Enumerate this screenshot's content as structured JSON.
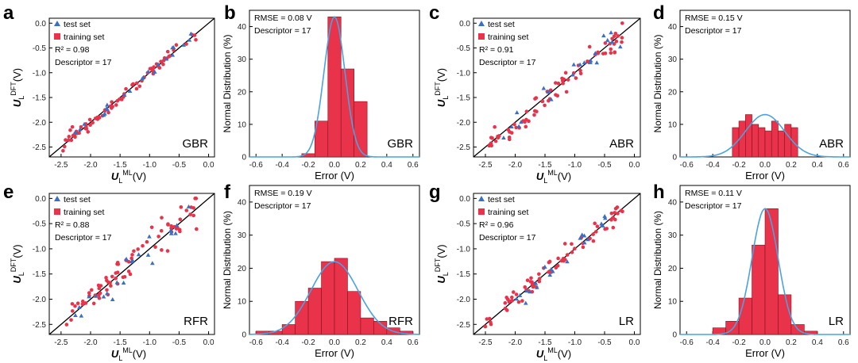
{
  "figure": {
    "colors": {
      "train": "#e8334a",
      "test": "#3a6fc4",
      "gauss": "#4aa3df",
      "bar": "#e8334a",
      "axis": "#000000"
    }
  },
  "chart_data": [
    {
      "id": "a",
      "type": "scatter",
      "panel_letter": "a",
      "model_label": "GBR",
      "r2_text": "R² = 0.98",
      "descriptor_text": "Descriptor = 17",
      "legend": [
        "test set",
        "training set"
      ],
      "xlabel": "U_L^ML(V)",
      "ylabel": "U_L^DFT(V)",
      "xlim": [
        -2.7,
        0.1
      ],
      "ylim": [
        -2.7,
        0.1
      ],
      "ticks": [
        -2.5,
        -2.0,
        -1.5,
        -1.0,
        -0.5,
        0.0
      ],
      "tick_labels": [
        "-2.5",
        "-2.0",
        "-1.5",
        "-1.0",
        "-0.5",
        "0.0"
      ],
      "spread": 0.06,
      "seed": 11
    },
    {
      "id": "b",
      "type": "bar",
      "panel_letter": "b",
      "model_label": "GBR",
      "rmse_text": "RMSE = 0.08 V",
      "descriptor_text": "Descriptor = 17",
      "xlabel": "Error (V)",
      "ylabel": "Normal Distribution (%)",
      "xlim": [
        -0.65,
        0.65
      ],
      "ylim": [
        0,
        45
      ],
      "xticks": [
        -0.6,
        -0.4,
        -0.2,
        0.0,
        0.2,
        0.4,
        0.6
      ],
      "xtick_labels": [
        "-0.6",
        "-0.4",
        "-0.2",
        "0.0",
        "0.2",
        "0.4",
        "0.6"
      ],
      "yticks": [
        0,
        10,
        20,
        30,
        40
      ],
      "ytick_labels": [
        "0",
        "10",
        "20",
        "30",
        "40"
      ],
      "bin_start": -0.25,
      "bin_width": 0.1,
      "values": [
        1,
        11,
        43,
        27,
        17
      ],
      "gauss": {
        "mu": 0.0,
        "sigma": 0.08,
        "peak": 43
      }
    },
    {
      "id": "c",
      "type": "scatter",
      "panel_letter": "c",
      "model_label": "ABR",
      "r2_text": "R² = 0.91",
      "descriptor_text": "Descriptor = 17",
      "legend": [
        "test set",
        "training set"
      ],
      "xlabel": "U_L^ML(V)",
      "ylabel": "U_L^DFT(V)",
      "xlim": [
        -2.7,
        0.1
      ],
      "ylim": [
        -2.7,
        0.1
      ],
      "ticks": [
        -2.5,
        -2.0,
        -1.5,
        -1.0,
        -0.5,
        0.0
      ],
      "tick_labels": [
        "-2.5",
        "-2.0",
        "-1.5",
        "-1.0",
        "-0.5",
        "0.0"
      ],
      "spread": 0.12,
      "seed": 23
    },
    {
      "id": "d",
      "type": "bar",
      "panel_letter": "d",
      "model_label": "ABR",
      "rmse_text": "RMSE = 0.15 V",
      "descriptor_text": "Descriptor = 17",
      "xlabel": "Error (V)",
      "ylabel": "Normal Distribution (%)",
      "xlim": [
        -0.65,
        0.65
      ],
      "ylim": [
        0,
        45
      ],
      "xticks": [
        -0.6,
        -0.4,
        -0.2,
        0.0,
        0.2,
        0.4,
        0.6
      ],
      "xtick_labels": [
        "-0.6",
        "-0.4",
        "-0.2",
        "0.0",
        "0.2",
        "0.4",
        "0.6"
      ],
      "yticks": [
        0,
        10,
        20,
        30,
        40
      ],
      "ytick_labels": [
        "0",
        "10",
        "20",
        "30",
        "40"
      ],
      "bin_start": -0.25,
      "bin_width": 0.05,
      "values": [
        9,
        11,
        13,
        10,
        9,
        8,
        11,
        8,
        10,
        9
      ],
      "gauss": {
        "mu": 0.0,
        "sigma": 0.15,
        "peak": 13
      }
    },
    {
      "id": "e",
      "type": "scatter",
      "panel_letter": "e",
      "model_label": "RFR",
      "r2_text": "R² = 0.88",
      "descriptor_text": "Descriptor = 17",
      "legend": [
        "test set",
        "training set"
      ],
      "xlabel": "U_L^ML(V)",
      "ylabel": "U_L^DFT(V)",
      "xlim": [
        -2.7,
        0.1
      ],
      "ylim": [
        -2.7,
        0.1
      ],
      "ticks": [
        -2.5,
        -2.0,
        -1.5,
        -1.0,
        -0.5,
        0.0
      ],
      "tick_labels": [
        "-2.5",
        "-2.0",
        "-1.5",
        "-1.0",
        "-0.5",
        "0.0"
      ],
      "spread": 0.17,
      "seed": 37
    },
    {
      "id": "f",
      "type": "bar",
      "panel_letter": "f",
      "model_label": "RFR",
      "rmse_text": "RMSE = 0.19 V",
      "descriptor_text": "Descriptor = 17",
      "xlabel": "Error (V)",
      "ylabel": "Normal Distribution (%)",
      "xlim": [
        -0.65,
        0.65
      ],
      "ylim": [
        0,
        45
      ],
      "xticks": [
        -0.6,
        -0.4,
        -0.2,
        0.0,
        0.2,
        0.4,
        0.6
      ],
      "xtick_labels": [
        "-0.6",
        "-0.4",
        "-0.2",
        "0.0",
        "0.2",
        "0.4",
        "0.6"
      ],
      "yticks": [
        0,
        10,
        20,
        30,
        40
      ],
      "ytick_labels": [
        "0",
        "10",
        "20",
        "30",
        "40"
      ],
      "bin_start": -0.6,
      "bin_width": 0.1,
      "values": [
        1,
        1,
        3,
        10,
        14,
        22,
        23,
        13,
        5,
        4,
        2,
        1
      ],
      "gauss": {
        "mu": 0.0,
        "sigma": 0.18,
        "peak": 22
      }
    },
    {
      "id": "g",
      "type": "scatter",
      "panel_letter": "g",
      "model_label": "LR",
      "r2_text": "R² = 0.96",
      "descriptor_text": "Descriptor = 17",
      "legend": [
        "test set",
        "training set"
      ],
      "xlabel": "U_L^ML(V)",
      "ylabel": "U_L^DFT(V)",
      "xlim": [
        -2.7,
        0.1
      ],
      "ylim": [
        -2.7,
        0.1
      ],
      "ticks": [
        -2.5,
        -2.0,
        -1.5,
        -1.0,
        -0.5,
        0.0
      ],
      "tick_labels": [
        "-2.5",
        "-2.0",
        "-1.5",
        "-1.0",
        "-0.5",
        "0.0"
      ],
      "spread": 0.09,
      "seed": 51
    },
    {
      "id": "h",
      "type": "bar",
      "panel_letter": "h",
      "model_label": "LR",
      "rmse_text": "RMSE = 0.11 V",
      "descriptor_text": "Descriptor = 17",
      "xlabel": "Error (V)",
      "ylabel": "Normal Distribution (%)",
      "xlim": [
        -0.65,
        0.65
      ],
      "ylim": [
        0,
        45
      ],
      "xticks": [
        -0.6,
        -0.4,
        -0.2,
        0.0,
        0.2,
        0.4,
        0.6
      ],
      "xtick_labels": [
        "-0.6",
        "-0.4",
        "-0.2",
        "0.0",
        "0.2",
        "0.4",
        "0.6"
      ],
      "yticks": [
        0,
        10,
        20,
        30,
        40
      ],
      "ytick_labels": [
        "0",
        "10",
        "20",
        "30",
        "40"
      ],
      "bin_start": -0.4,
      "bin_width": 0.1,
      "values": [
        2,
        4,
        11,
        27,
        38,
        12,
        3,
        1
      ],
      "gauss": {
        "mu": 0.0,
        "sigma": 0.1,
        "peak": 38
      }
    }
  ]
}
